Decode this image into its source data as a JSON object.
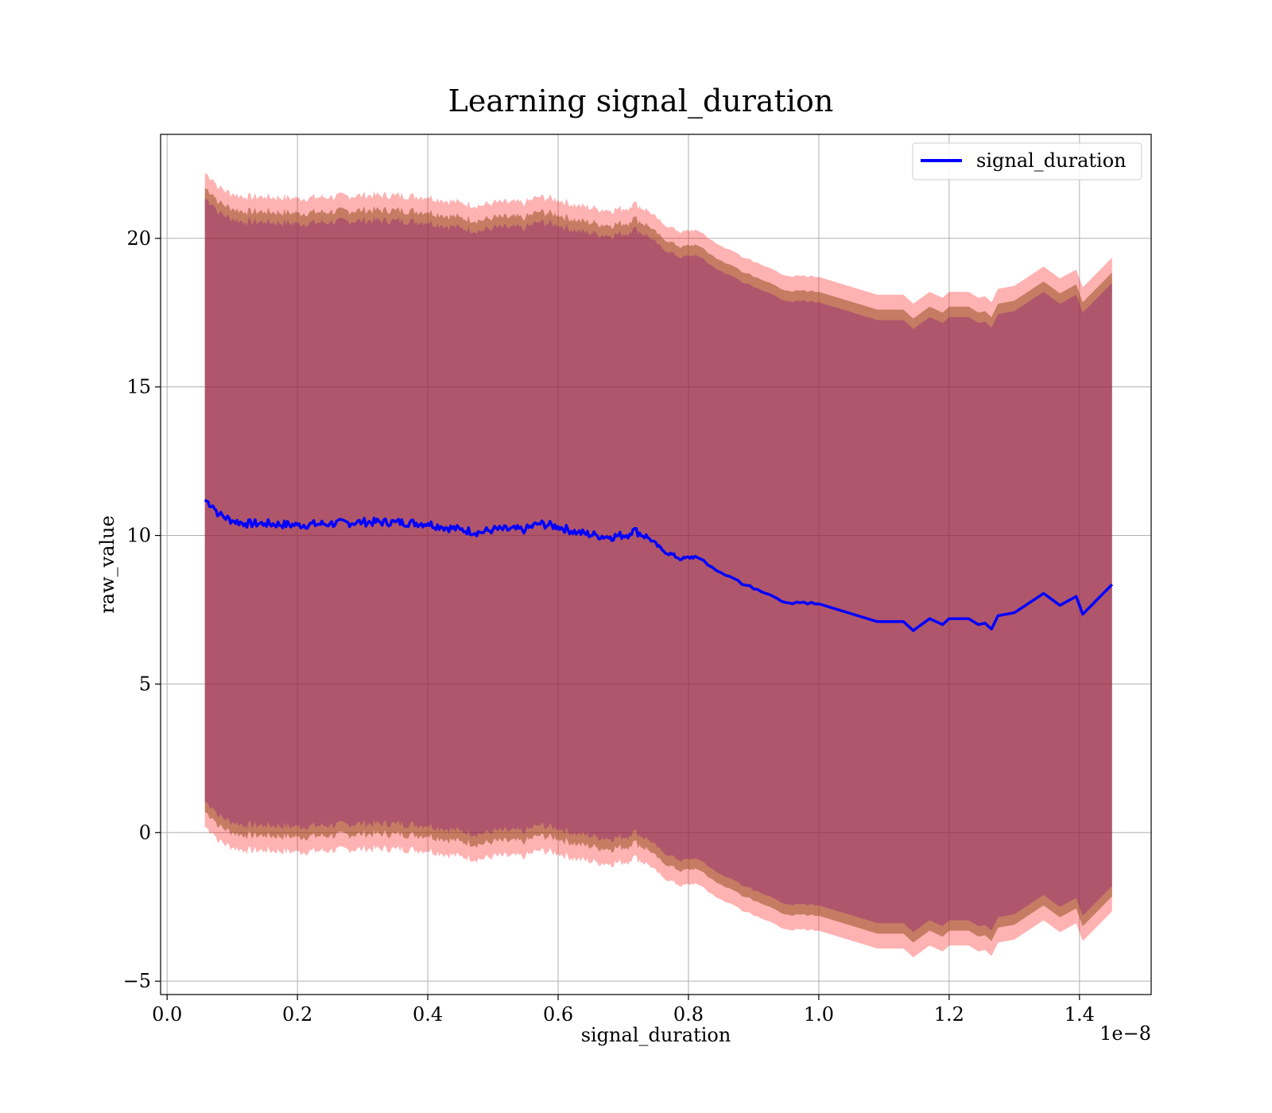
{
  "chart_data": {
    "type": "line",
    "title": "Learning signal_duration",
    "xlabel": "signal_duration",
    "ylabel": "raw_value",
    "x_offset_label": "1e−8",
    "x_ticks": [
      0.0,
      0.2,
      0.4,
      0.6,
      0.8,
      1.0,
      1.2,
      1.4
    ],
    "x_tick_labels": [
      "0.0",
      "0.2",
      "0.4",
      "0.6",
      "0.8",
      "1.0",
      "1.2",
      "1.4"
    ],
    "y_ticks": [
      -5,
      0,
      5,
      10,
      15,
      20
    ],
    "y_tick_labels": [
      "−5",
      "0",
      "5",
      "10",
      "15",
      "20"
    ],
    "xlim": [
      -0.01,
      1.51
    ],
    "ylim": [
      -5.45,
      23.5
    ],
    "grid": true,
    "legend_position": "top-right",
    "series": [
      {
        "name": "signal_duration",
        "color": "#0000ff",
        "x": [
          0.058,
          0.07,
          0.08,
          0.1,
          0.12,
          0.15,
          0.2,
          0.25,
          0.3,
          0.35,
          0.4,
          0.42,
          0.45,
          0.48,
          0.5,
          0.55,
          0.57,
          0.6,
          0.63,
          0.66,
          0.68,
          0.71,
          0.715,
          0.74,
          0.76,
          0.79,
          0.81,
          0.83,
          0.85,
          0.87,
          0.9,
          0.93,
          0.96,
          1.0,
          1.03,
          1.06,
          1.09,
          1.12,
          1.13,
          1.145,
          1.17,
          1.19,
          1.2,
          1.23,
          1.245,
          1.255,
          1.265,
          1.275,
          1.3,
          1.345,
          1.37,
          1.395,
          1.405,
          1.45
        ],
        "y": [
          11.2,
          11.0,
          10.7,
          10.5,
          10.4,
          10.4,
          10.35,
          10.4,
          10.45,
          10.45,
          10.4,
          10.3,
          10.2,
          10.1,
          10.2,
          10.2,
          10.4,
          10.3,
          10.1,
          10.0,
          9.95,
          10.05,
          10.2,
          9.9,
          9.5,
          9.2,
          9.3,
          9.0,
          8.75,
          8.55,
          8.2,
          7.95,
          7.7,
          7.7,
          7.5,
          7.3,
          7.1,
          7.1,
          7.1,
          6.8,
          7.2,
          7.0,
          7.2,
          7.2,
          7.0,
          7.05,
          6.85,
          7.3,
          7.4,
          8.05,
          7.65,
          7.95,
          7.35,
          8.35
        ]
      }
    ],
    "bands": [
      {
        "color": "#ff0000",
        "opacity": 0.3,
        "half_width": 11.0
      },
      {
        "color": "#8b4513",
        "opacity": 0.5,
        "half_width": 10.5
      },
      {
        "color": "#800080",
        "opacity": 0.3,
        "half_width": 10.15
      }
    ]
  }
}
